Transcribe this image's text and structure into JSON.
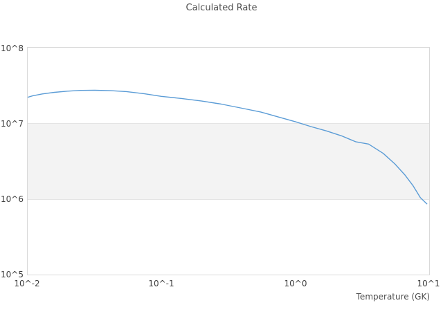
{
  "chart_data": {
    "type": "line",
    "title": "Calculated Rate",
    "xlabel": "Temperature (GK)",
    "ylabel": "",
    "xscale": "log",
    "yscale": "log",
    "xlim": [
      0.01,
      10
    ],
    "ylim": [
      100000,
      100000000
    ],
    "xtick_labels": [
      "10^-2",
      "10^-1",
      "10^0",
      "10^1"
    ],
    "ytick_labels": [
      "10^8",
      "10^7",
      "10^6",
      "10^5"
    ],
    "grid": false,
    "legend_visible": false,
    "band": {
      "ymin": 1000000,
      "ymax": 10000000,
      "color": "#f3f3f3",
      "edge_color": "#e4e4e4"
    },
    "line_color": "#5b9cd6",
    "frame_color": "#d9d9d9",
    "text_color": "#3d3d3d",
    "series": [
      {
        "name": "calculated rate",
        "x": [
          0.01,
          0.011,
          0.013,
          0.016,
          0.02,
          0.025,
          0.032,
          0.042,
          0.055,
          0.075,
          0.1,
          0.14,
          0.2,
          0.28,
          0.4,
          0.55,
          0.75,
          1.0,
          1.3,
          1.7,
          2.2,
          2.8,
          3.5,
          4.5,
          5.5,
          6.5,
          7.5,
          8.5,
          9.5
        ],
        "y": [
          21700000,
          22800000,
          24200000,
          25400000,
          26300000,
          26900000,
          27000000,
          26700000,
          26000000,
          24300000,
          22500000,
          21100000,
          19500000,
          17800000,
          15700000,
          14000000,
          12000000,
          10400000,
          9000000,
          7900000,
          6800000,
          5700000,
          5300000,
          4000000,
          2900000,
          2100000,
          1500000,
          1050000,
          870000
        ]
      }
    ]
  }
}
